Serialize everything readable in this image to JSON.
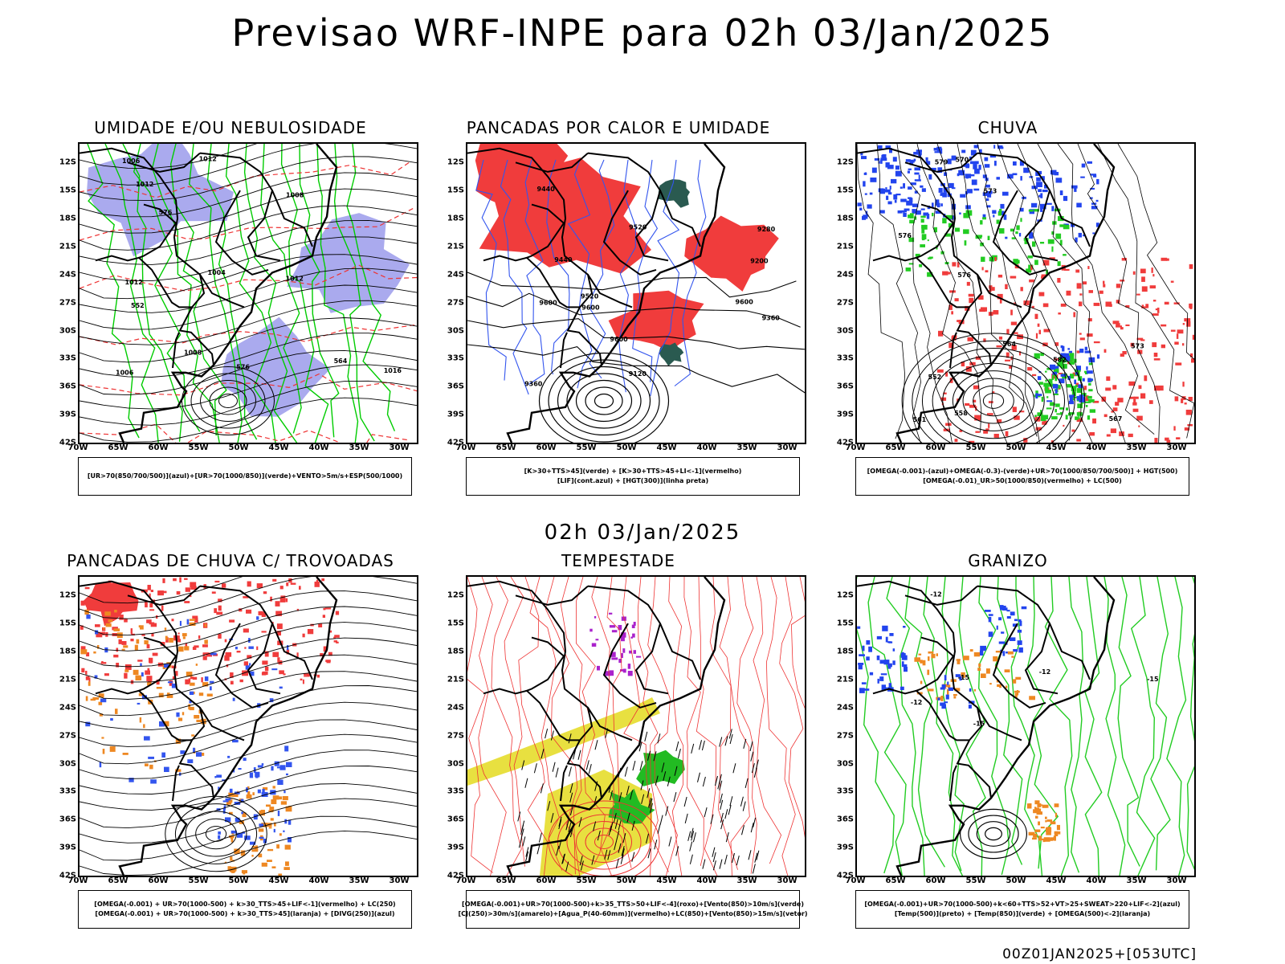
{
  "header": {
    "title": "Previsao WRF-INPE  para 02h 03/Jan/2025"
  },
  "mid_label": "02h 03/Jan/2025",
  "footer": "00Z01JAN2025+[053UTC]",
  "axes": {
    "lat_labels": [
      "12S",
      "15S",
      "18S",
      "21S",
      "24S",
      "27S",
      "30S",
      "33S",
      "36S",
      "39S",
      "42S"
    ],
    "lon_labels": [
      "70W",
      "65W",
      "60W",
      "55W",
      "50W",
      "45W",
      "40W",
      "35W",
      "30W"
    ]
  },
  "panels": [
    {
      "id": "umidade",
      "title": "UMIDADE E/OU NEBULOSIDADE",
      "legend": [
        "[UR>70(850/700/500)](azul)+[UR>70(1000/850)](verde)+VENTO>5m/s+ESP(500/1000)"
      ],
      "contour_labels": [
        "1012",
        "1012",
        "1012",
        "1006",
        "1008",
        "1006",
        "1008",
        "1016",
        "1012",
        "576",
        "576",
        "564",
        "552",
        "1004"
      ],
      "colors": {
        "fill": "#aaaaee",
        "line1": "#00cc00",
        "line2": "#ee3333",
        "line3": "#000000"
      }
    },
    {
      "id": "pancadas-calor",
      "title": "PANCADAS POR CALOR E UMIDADE",
      "legend": [
        "[K>30+TTS>45](verde) + [K>30+TTS>45+LI<-1](vermelho)",
        "[LIF](cont.azul) + [HGT(300)](linha preta)"
      ],
      "contour_labels": [
        "9600",
        "9600",
        "9600",
        "9520",
        "9600",
        "9520",
        "9440",
        "9360",
        "9280",
        "9200",
        "9120",
        "9440",
        "9360"
      ],
      "colors": {
        "fill": "#f03c3c",
        "fill2": "#2a5a50",
        "line1": "#3355ee",
        "line2": "#000000"
      }
    },
    {
      "id": "chuva",
      "title": "CHUVA",
      "legend": [
        "[OMEGA(-0.001)-(azul)+OMEGA(-0.3)-(verde)+UR>70(1000/850/700/500)] + HGT(500)",
        "[OMEGA(-0.01)_UR>50(1000/850)(vermelho) + LC(500)"
      ],
      "contour_labels": [
        "582",
        "579",
        "576",
        "573",
        "570",
        "567",
        "564",
        "561",
        "558",
        "552",
        "576",
        "573"
      ],
      "colors": {
        "fill": "#f03c3c",
        "fill2": "#2244ee",
        "fill3": "#22cc22",
        "line1": "#000000"
      }
    },
    {
      "id": "trovoadas",
      "title": "PANCADAS DE CHUVA C/ TROVOADAS",
      "legend": [
        "[OMEGA(-0.001) + UR>70(1000-500) + k>30_TTS>45+LIF<-1](vermelho) + LC(250)",
        "[OMEGA(-0.001) + UR>70(1000-500) + k>30_TTS>45](laranja) + [DIVG(250)](azul)"
      ],
      "contour_labels": [],
      "colors": {
        "fill": "#f03c3c",
        "fill2": "#ee8822",
        "fill3": "#3355ee",
        "line1": "#000000"
      }
    },
    {
      "id": "tempestade",
      "title": "TEMPESTADE",
      "legend": [
        "[OMEGA(-0.001)+UR>70(1000-500)+k>35_TTS>50+LIF<-4](roxo)+[Vento(850)>10m/s](verde)",
        "[CJ(250)>30m/s](amarelo)+[Agua_P(40-60mm)](vermelho)+LC(850)+[Vento(850)>15m/s](vetor)"
      ],
      "contour_labels": [],
      "colors": {
        "fill": "#e8e040",
        "fill2": "#22bb22",
        "fill3": "#aa22cc",
        "line1": "#ee3333"
      }
    },
    {
      "id": "granizo",
      "title": "GRANIZO",
      "legend": [
        "[OMEGA(-0.001)+UR>70(1000-500)+k<60+TTS>52+VT>25+SWEAT>220+LIF<-2](azul)",
        "[Temp(500)](preto) + [Temp(850)](verde) + [OMEGA(500)<-2](laranja)"
      ],
      "contour_labels": [
        "-15",
        "-12",
        "-15",
        "-12",
        "-15",
        "-12"
      ],
      "colors": {
        "fill": "#ee8822",
        "fill2": "#2244ee",
        "line1": "#22cc22",
        "line2": "#000000"
      }
    }
  ]
}
